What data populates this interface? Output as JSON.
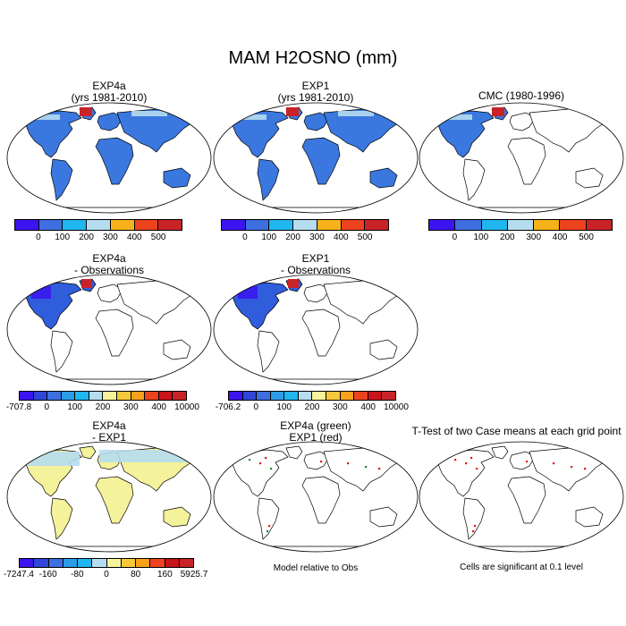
{
  "chart_data": {
    "type": "map-panel-grid",
    "title": "MAM H2OSNO (mm)",
    "panels": [
      {
        "id": "exp4a",
        "title": [
          "EXP4a",
          "(yrs 1981-2010)"
        ],
        "fill": "land",
        "land_color": "#3a78e0",
        "highlight": "snowy-north"
      },
      {
        "id": "exp1",
        "title": [
          "EXP1",
          "(yrs 1981-2010)"
        ],
        "fill": "land",
        "land_color": "#3a78e0",
        "highlight": "snowy-north"
      },
      {
        "id": "cmc",
        "title": [
          "CMC (1980-1996)"
        ],
        "fill": "north-america",
        "land_color": "#3a78e0",
        "highlight": "snowy-north"
      },
      {
        "id": "exp4a_obs",
        "title": [
          "EXP4a",
          "- Observations"
        ],
        "fill": "north-america",
        "land_color": "#2f5ddc",
        "highlight": "blue-north"
      },
      {
        "id": "exp1_obs",
        "title": [
          "EXP1",
          "- Observations"
        ],
        "fill": "north-america",
        "land_color": "#2f5ddc",
        "highlight": "blue-north"
      },
      {
        "id": "exp4a_exp1",
        "title": [
          "EXP4a",
          "- EXP1"
        ],
        "fill": "land",
        "land_color": "#f4f29a",
        "highlight": "lightblue-north"
      },
      {
        "id": "green_red",
        "title": [
          "EXP4a (green)",
          "EXP1 (red)"
        ],
        "fill": "none",
        "land_color": "#ffffff",
        "highlight": "dots"
      },
      {
        "id": "ttest",
        "title": [
          "T-Test of two Case means at each grid point"
        ],
        "fill": "none",
        "land_color": "#ffffff",
        "highlight": "reddots"
      }
    ],
    "colorbars": [
      {
        "id": "cb1",
        "colors": [
          "#3b14f0",
          "#3d6fe0",
          "#20b6ef",
          "#b6dcef",
          "#f7b21a",
          "#ec431e",
          "#c82427"
        ],
        "labels": [
          "0",
          "100",
          "200",
          "300",
          "400",
          "500"
        ]
      },
      {
        "id": "cb2",
        "colors": [
          "#3b14f0",
          "#3d6fe0",
          "#20b6ef",
          "#b6dcef",
          "#f7b21a",
          "#ec431e",
          "#c82427"
        ],
        "labels": [
          "0",
          "100",
          "200",
          "300",
          "400",
          "500"
        ]
      },
      {
        "id": "cb3",
        "colors": [
          "#3b14f0",
          "#3d6fe0",
          "#20b6ef",
          "#b6dcef",
          "#f7b21a",
          "#ec431e",
          "#c82427"
        ],
        "labels": [
          "0",
          "100",
          "200",
          "300",
          "400",
          "500"
        ]
      },
      {
        "id": "cb4",
        "colors": [
          "#3b14f0",
          "#2f46d8",
          "#3d6fe0",
          "#2c9ce8",
          "#20b6ef",
          "#b6dcef",
          "#f7f39a",
          "#f7c93a",
          "#f7a21a",
          "#ec431e",
          "#c8141a",
          "#c82427"
        ],
        "labels": [
          "-707.8",
          "0",
          "100",
          "200",
          "300",
          "400",
          "10000"
        ]
      },
      {
        "id": "cb5",
        "colors": [
          "#3b14f0",
          "#2f46d8",
          "#3d6fe0",
          "#2c9ce8",
          "#20b6ef",
          "#b6dcef",
          "#f7f39a",
          "#f7c93a",
          "#f7a21a",
          "#ec431e",
          "#c8141a",
          "#c82427"
        ],
        "labels": [
          "-706.2",
          "0",
          "100",
          "200",
          "300",
          "400",
          "10000"
        ]
      },
      {
        "id": "cb6",
        "colors": [
          "#3b14f0",
          "#2f46d8",
          "#3d6fe0",
          "#2c9ce8",
          "#20b6ef",
          "#b6dcef",
          "#f7f39a",
          "#f7c93a",
          "#f7a21a",
          "#ec431e",
          "#c8141a",
          "#c82427"
        ],
        "labels": [
          "-7247.4",
          "-160",
          "-80",
          "0",
          "80",
          "160",
          "5925.7"
        ]
      }
    ]
  },
  "notes": {
    "model_relative": "Model relative to Obs",
    "significance": "Cells are significant at 0.1 level"
  }
}
